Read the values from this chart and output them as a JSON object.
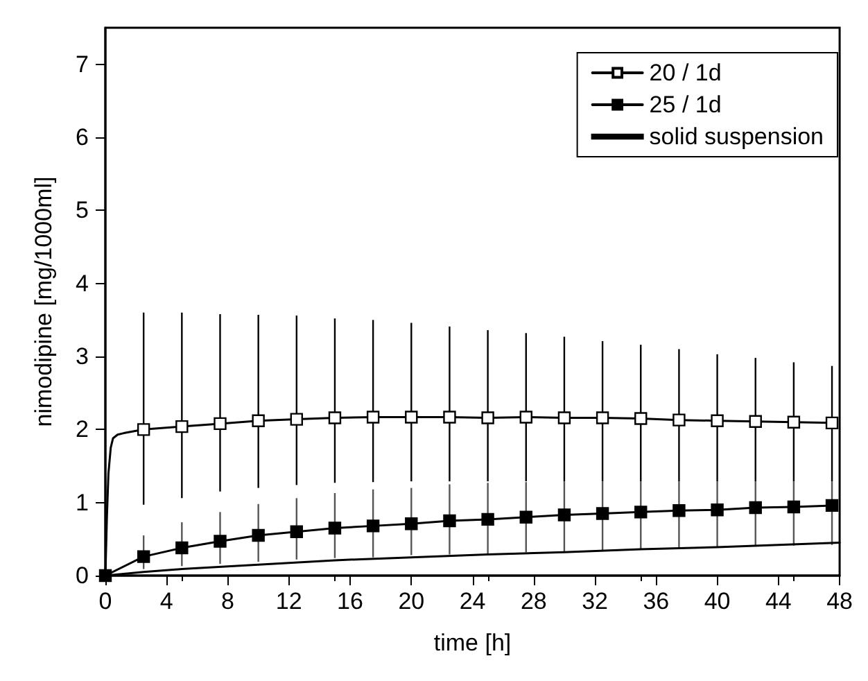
{
  "chart_data": {
    "type": "line",
    "xlabel": "time [h]",
    "ylabel": "nimodipine [mg/1000ml]",
    "xlim": [
      0,
      48
    ],
    "xticks": [
      0,
      4,
      8,
      12,
      16,
      20,
      24,
      28,
      32,
      36,
      40,
      44,
      48
    ],
    "ylim": [
      0,
      7.5
    ],
    "yticks": [
      0,
      1,
      2,
      3,
      4,
      5,
      6,
      7
    ],
    "grid": false,
    "legend": "top right",
    "series": [
      {
        "name": "20 / 1d",
        "color": "#000000",
        "marker": "square",
        "x": [
          2.5,
          5,
          7.5,
          10,
          12.5,
          15,
          17.5,
          20,
          22.5,
          25,
          27.5,
          30,
          32.5,
          35,
          37.5,
          40,
          42.5,
          45,
          47.5
        ],
        "values": [
          2.0,
          2.04,
          2.08,
          2.12,
          2.14,
          2.16,
          2.17,
          2.17,
          2.17,
          2.16,
          2.17,
          2.16,
          2.16,
          2.15,
          2.13,
          2.12,
          2.11,
          2.1,
          2.09
        ],
        "errors": [
          [
            0.97,
            3.6
          ],
          [
            1.06,
            3.6
          ],
          [
            1.15,
            3.58
          ],
          [
            1.2,
            3.57
          ],
          [
            1.24,
            3.56
          ],
          [
            1.27,
            3.52
          ],
          [
            1.28,
            3.5
          ],
          [
            1.29,
            3.46
          ],
          [
            1.29,
            3.41
          ],
          [
            1.29,
            3.36
          ],
          [
            1.29,
            3.32
          ],
          [
            1.29,
            3.27
          ],
          [
            1.29,
            3.21
          ],
          [
            1.29,
            3.16
          ],
          [
            1.29,
            3.1
          ],
          [
            1.29,
            3.03
          ],
          [
            1.29,
            2.98
          ],
          [
            1.29,
            2.92
          ],
          [
            1.29,
            2.87
          ]
        ]
      },
      {
        "name": "25 / 1d",
        "color": "#000000",
        "marker": "square",
        "x": [
          0,
          2.5,
          5,
          7.5,
          10,
          12.5,
          15,
          17.5,
          20,
          22.5,
          25,
          27.5,
          30,
          32.5,
          35,
          37.5,
          40,
          42.5,
          45,
          47.5
        ],
        "values": [
          0,
          0.26,
          0.38,
          0.47,
          0.55,
          0.6,
          0.65,
          0.68,
          0.71,
          0.75,
          0.77,
          0.8,
          0.83,
          0.85,
          0.87,
          0.89,
          0.9,
          0.93,
          0.94,
          0.96
        ],
        "errors": [
          null,
          [
            0.09,
            0.55
          ],
          [
            0.13,
            0.73
          ],
          [
            0.16,
            0.87
          ],
          [
            0.19,
            0.98
          ],
          [
            0.22,
            1.06
          ],
          [
            0.24,
            1.13
          ],
          [
            0.25,
            1.18
          ],
          [
            0.28,
            1.2
          ],
          [
            0.29,
            1.25
          ],
          [
            0.3,
            1.27
          ],
          [
            0.32,
            1.28
          ],
          [
            0.33,
            1.29
          ],
          [
            0.35,
            1.29
          ],
          [
            0.36,
            1.29
          ],
          [
            0.38,
            1.29
          ],
          [
            0.39,
            1.29
          ],
          [
            0.4,
            1.29
          ],
          [
            0.41,
            1.29
          ],
          [
            0.42,
            1.29
          ]
        ]
      },
      {
        "name": "solid suspension",
        "color": "#000000",
        "marker": "none",
        "x": [
          0,
          2.5,
          5,
          10,
          15,
          20,
          25,
          30,
          35,
          40,
          44,
          48
        ],
        "values": [
          0,
          0.05,
          0.09,
          0.15,
          0.21,
          0.25,
          0.29,
          0.32,
          0.36,
          0.39,
          0.42,
          0.45
        ]
      },
      {
        "color": "#000000",
        "marker": "none",
        "x": [
          0,
          0.1,
          0.2,
          0.35,
          0.5,
          0.8,
          1.2,
          2.5
        ],
        "values": [
          0,
          0.8,
          1.4,
          1.75,
          1.88,
          1.93,
          1.95,
          2.0
        ]
      }
    ]
  }
}
